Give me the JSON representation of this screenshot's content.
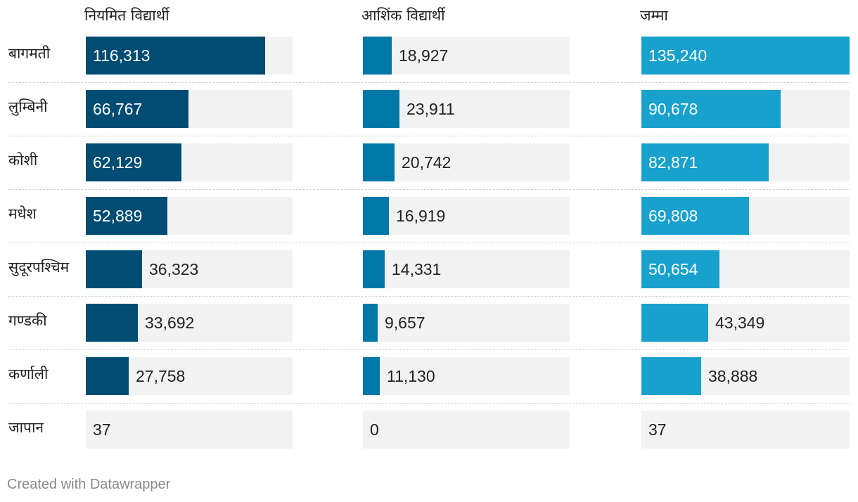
{
  "chart_data": {
    "type": "table",
    "columns": [
      {
        "header": "नियमित विद्यार्थी",
        "color": "#004c73"
      },
      {
        "header": "आशिंक विद्यार्थी",
        "color": "#0078a8"
      },
      {
        "header": "जम्मा",
        "color": "#18a1cd"
      }
    ],
    "rows": [
      {
        "label": "बागमती",
        "values": [
          116313,
          18927,
          135240
        ],
        "display": [
          "116,313",
          "18,927",
          "135,240"
        ]
      },
      {
        "label": "लुम्बिनी",
        "values": [
          66767,
          23911,
          90678
        ],
        "display": [
          "66,767",
          "23,911",
          "90,678"
        ]
      },
      {
        "label": "कोशी",
        "values": [
          62129,
          20742,
          82871
        ],
        "display": [
          "62,129",
          "20,742",
          "82,871"
        ]
      },
      {
        "label": "मधेश",
        "values": [
          52889,
          16919,
          69808
        ],
        "display": [
          "52,889",
          "16,919",
          "69,808"
        ]
      },
      {
        "label": "सुदूरपश्चिम",
        "values": [
          36323,
          14331,
          50654
        ],
        "display": [
          "36,323",
          "14,331",
          "50,654"
        ]
      },
      {
        "label": "गण्डकी",
        "values": [
          33692,
          9657,
          43349
        ],
        "display": [
          "33,692",
          "9,657",
          "43,349"
        ]
      },
      {
        "label": "कर्णाली",
        "values": [
          27758,
          11130,
          38888
        ],
        "display": [
          "27,758",
          "11,130",
          "38,888"
        ]
      },
      {
        "label": "जापान",
        "values": [
          37,
          0,
          37
        ],
        "display": [
          "37",
          "0",
          "37"
        ]
      }
    ],
    "column_max": [
      135240,
      135240,
      135240
    ]
  },
  "footer": "Created with Datawrapper"
}
